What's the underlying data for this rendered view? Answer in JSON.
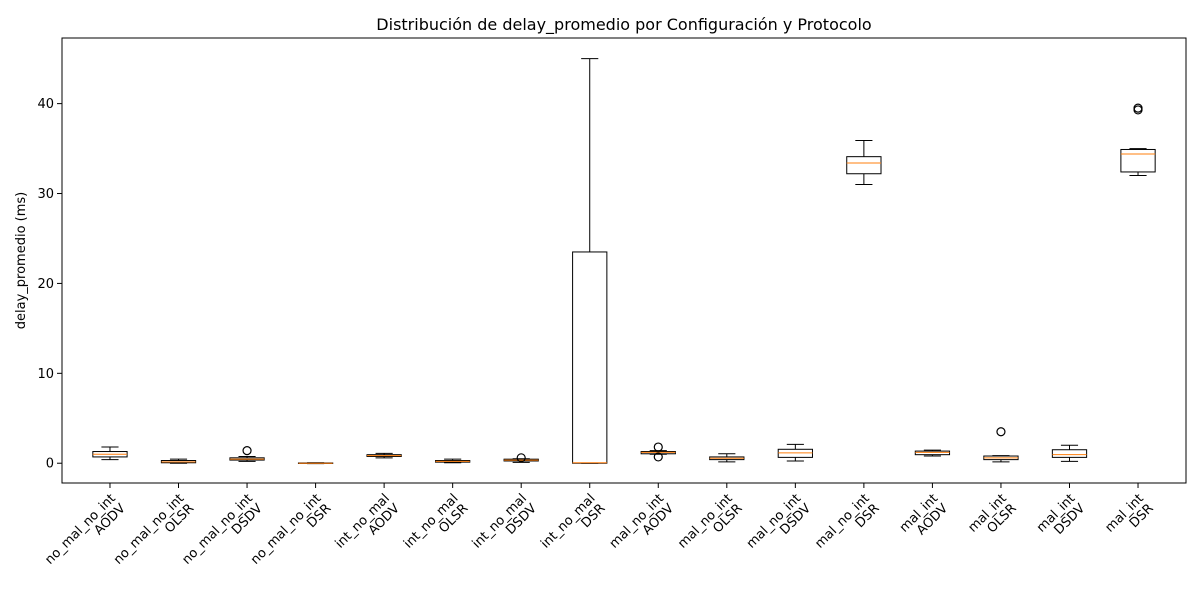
{
  "chart_data": {
    "type": "boxplot",
    "title": "Distribución de delay_promedio por Configuración y Protocolo",
    "xlabel": "",
    "ylabel": "delay_promedio (ms)",
    "ylim": [
      -2.2,
      47.3
    ],
    "yticks": [
      0,
      10,
      20,
      30,
      40
    ],
    "grid": false,
    "colors": {
      "box": "#000000",
      "median": "#ff7f0e",
      "background": "#ffffff"
    },
    "categories": [
      {
        "line1": "no_mal_no_int",
        "line2": "AODV",
        "whisker_low": 0.4,
        "q1": 0.7,
        "median": 1.0,
        "q3": 1.3,
        "whisker_high": 1.8,
        "outliers": []
      },
      {
        "line1": "no_mal_no_int",
        "line2": "OLSR",
        "whisker_low": 0.0,
        "q1": 0.05,
        "median": 0.15,
        "q3": 0.3,
        "whisker_high": 0.45,
        "outliers": []
      },
      {
        "line1": "no_mal_no_int",
        "line2": "DSDV",
        "whisker_low": 0.2,
        "q1": 0.35,
        "median": 0.45,
        "q3": 0.6,
        "whisker_high": 0.75,
        "outliers": [
          1.4
        ]
      },
      {
        "line1": "no_mal_no_int",
        "line2": "DSR",
        "whisker_low": -0.05,
        "q1": -0.03,
        "median": 0.0,
        "q3": 0.03,
        "whisker_high": 0.05,
        "outliers": []
      },
      {
        "line1": "int_no_mal",
        "line2": "AODV",
        "whisker_low": 0.6,
        "q1": 0.75,
        "median": 0.85,
        "q3": 0.95,
        "whisker_high": 1.1,
        "outliers": []
      },
      {
        "line1": "int_no_mal",
        "line2": "OLSR",
        "whisker_low": 0.05,
        "q1": 0.12,
        "median": 0.2,
        "q3": 0.3,
        "whisker_high": 0.45,
        "outliers": []
      },
      {
        "line1": "int_no_mal",
        "line2": "DSDV",
        "whisker_low": 0.1,
        "q1": 0.25,
        "median": 0.35,
        "q3": 0.45,
        "whisker_high": 0.5,
        "outliers": [
          0.6
        ]
      },
      {
        "line1": "int_no_mal",
        "line2": "DSR",
        "whisker_low": 0.0,
        "q1": 0.0,
        "median": 0.05,
        "q3": 23.5,
        "whisker_high": 45.0,
        "outliers": []
      },
      {
        "line1": "mal_no_int",
        "line2": "AODV",
        "whisker_low": 1.0,
        "q1": 1.05,
        "median": 1.2,
        "q3": 1.3,
        "whisker_high": 1.4,
        "outliers": [
          1.8,
          0.7
        ]
      },
      {
        "line1": "mal_no_int",
        "line2": "OLSR",
        "whisker_low": 0.15,
        "q1": 0.4,
        "median": 0.55,
        "q3": 0.7,
        "whisker_high": 1.05,
        "outliers": []
      },
      {
        "line1": "mal_no_int",
        "line2": "DSDV",
        "whisker_low": 0.25,
        "q1": 0.65,
        "median": 1.15,
        "q3": 1.55,
        "whisker_high": 2.1,
        "outliers": []
      },
      {
        "line1": "mal_no_int",
        "line2": "DSR",
        "whisker_low": 31.0,
        "q1": 32.2,
        "median": 33.4,
        "q3": 34.1,
        "whisker_high": 35.9,
        "outliers": []
      },
      {
        "line1": "mal_int",
        "line2": "AODV",
        "whisker_low": 0.8,
        "q1": 0.95,
        "median": 1.2,
        "q3": 1.35,
        "whisker_high": 1.45,
        "outliers": []
      },
      {
        "line1": "mal_int",
        "line2": "OLSR",
        "whisker_low": 0.15,
        "q1": 0.4,
        "median": 0.6,
        "q3": 0.8,
        "whisker_high": 0.85,
        "outliers": [
          3.5
        ]
      },
      {
        "line1": "mal_int",
        "line2": "DSDV",
        "whisker_low": 0.2,
        "q1": 0.65,
        "median": 0.95,
        "q3": 1.5,
        "whisker_high": 2.0,
        "outliers": []
      },
      {
        "line1": "mal_int",
        "line2": "DSR",
        "whisker_low": 32.0,
        "q1": 32.4,
        "median": 34.4,
        "q3": 34.9,
        "whisker_high": 35.0,
        "outliers": [
          39.3,
          39.5
        ]
      }
    ]
  }
}
